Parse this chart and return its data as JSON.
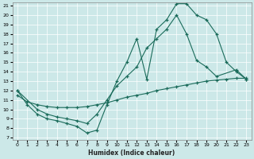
{
  "xlabel": "Humidex (Indice chaleur)",
  "bg_color": "#cce8e8",
  "line_color": "#1a6b5a",
  "xlim": [
    0,
    23
  ],
  "ylim": [
    7,
    21
  ],
  "xticks": [
    0,
    1,
    2,
    3,
    4,
    5,
    6,
    7,
    8,
    9,
    10,
    11,
    12,
    13,
    14,
    15,
    16,
    17,
    18,
    19,
    20,
    21,
    22,
    23
  ],
  "yticks": [
    7,
    8,
    9,
    10,
    11,
    12,
    13,
    14,
    15,
    16,
    17,
    18,
    19,
    20,
    21
  ],
  "curve1_x": [
    0,
    1,
    2,
    3,
    4,
    5,
    6,
    7,
    8,
    9,
    10,
    11,
    12,
    13,
    14,
    15,
    16,
    17,
    18,
    19,
    20,
    21,
    22,
    23
  ],
  "curve1_y": [
    12.0,
    10.5,
    9.5,
    9.0,
    8.8,
    8.5,
    8.2,
    7.5,
    7.8,
    10.5,
    13.0,
    15.0,
    17.5,
    13.2,
    18.5,
    19.5,
    21.2,
    21.2,
    20.0,
    19.5,
    18.0,
    15.0,
    14.0,
    13.2
  ],
  "curve2_x": [
    0,
    2,
    3,
    4,
    5,
    6,
    7,
    8,
    9,
    10,
    11,
    12,
    13,
    14,
    15,
    16,
    17,
    18,
    19,
    20,
    22,
    23
  ],
  "curve2_y": [
    12.0,
    10.0,
    9.5,
    9.2,
    9.0,
    8.8,
    8.5,
    9.5,
    11.0,
    12.5,
    13.5,
    14.5,
    16.5,
    17.5,
    18.5,
    20.0,
    18.0,
    15.2,
    14.5,
    13.5,
    14.2,
    13.2
  ],
  "curve3_x": [
    0,
    1,
    2,
    3,
    4,
    5,
    6,
    7,
    8,
    9,
    10,
    11,
    12,
    13,
    14,
    15,
    16,
    17,
    18,
    19,
    20,
    21,
    22,
    23
  ],
  "curve3_y": [
    11.5,
    10.8,
    10.5,
    10.3,
    10.2,
    10.2,
    10.2,
    10.3,
    10.5,
    10.7,
    11.0,
    11.3,
    11.5,
    11.7,
    12.0,
    12.2,
    12.4,
    12.6,
    12.8,
    13.0,
    13.1,
    13.2,
    13.3,
    13.3
  ]
}
